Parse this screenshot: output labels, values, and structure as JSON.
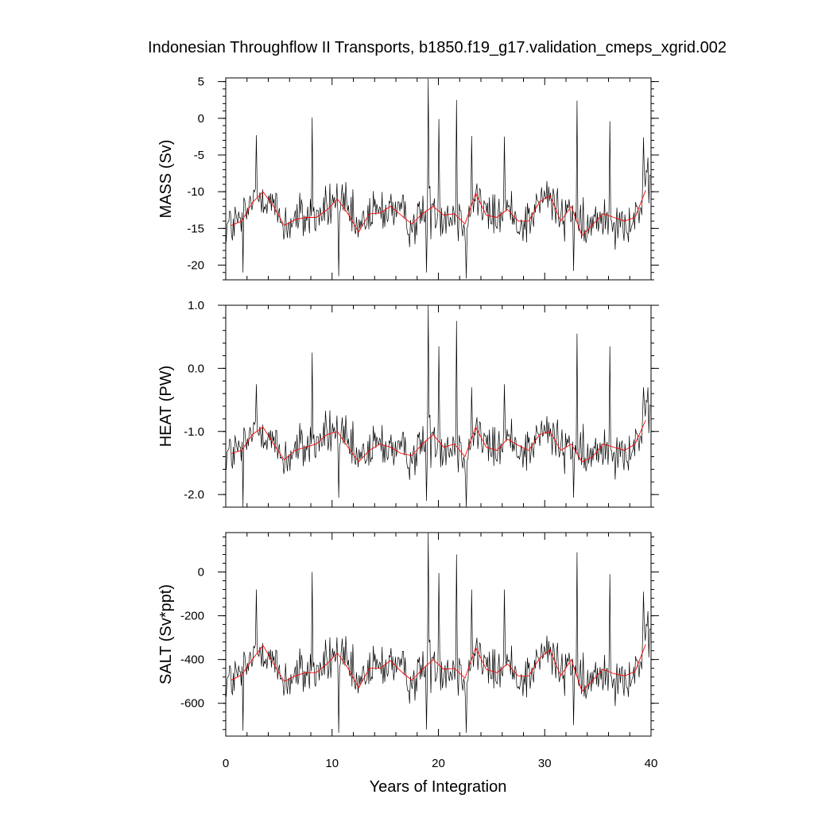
{
  "title": "Indonesian Throughflow II Transports, b1850.f19_g17.validation_cmeps_xgrid.002",
  "xlabel": "Years of Integration",
  "x_ticks": [
    "0",
    "10",
    "20",
    "30",
    "40"
  ],
  "colors": {
    "monthly": "#000000",
    "annual_mean": "#ff0000"
  },
  "chart_data": [
    {
      "type": "line",
      "ylabel": "MASS (Sv)",
      "xlim": [
        0,
        40
      ],
      "ylim": [
        -22,
        5.5
      ],
      "y_ticks": [
        5,
        0,
        -5,
        -10,
        -15,
        -20
      ],
      "y_tick_labels": [
        "5",
        "0",
        "-5",
        "-10",
        "-15",
        "-20"
      ],
      "annual_x": [
        0.5,
        1.5,
        2.5,
        3.5,
        4.5,
        5.5,
        6.5,
        7.5,
        8.5,
        9.5,
        10.5,
        11.5,
        12.5,
        13.5,
        14.5,
        15.5,
        16.5,
        17.5,
        18.5,
        19.5,
        20.5,
        21.5,
        22.5,
        23.5,
        24.5,
        25.5,
        26.5,
        27.5,
        28.5,
        29.5,
        30.5,
        31.5,
        32.5,
        33.5,
        34.5,
        35.5,
        36.5,
        37.5,
        38.5,
        39.5
      ],
      "annual_mean": [
        -14.6,
        -14.0,
        -11.5,
        -10.0,
        -12.0,
        -14.6,
        -13.8,
        -13.5,
        -13.5,
        -12.5,
        -11.0,
        -13.0,
        -15.5,
        -13.0,
        -12.9,
        -12.0,
        -13.2,
        -14.4,
        -13.0,
        -12.0,
        -13.2,
        -13.0,
        -14.4,
        -10.2,
        -13.2,
        -13.5,
        -12.4,
        -14.0,
        -14.0,
        -11.4,
        -10.5,
        -14.0,
        -12.0,
        -16.0,
        -14.5,
        -13.0,
        -13.5,
        -14.0,
        -13.5,
        -9.8
      ],
      "monthly_peaks": [
        [
          2.9,
          -2.3
        ],
        [
          8.1,
          0.1
        ],
        [
          19.0,
          5.4
        ],
        [
          20.0,
          -0.1
        ],
        [
          21.7,
          2.5
        ],
        [
          23.1,
          -2.4
        ],
        [
          26.2,
          -2.5
        ],
        [
          33.0,
          2.4
        ],
        [
          36.1,
          -0.4
        ],
        [
          39.3,
          -2.6
        ]
      ],
      "monthly_troughs": [
        [
          1.6,
          -21.0
        ],
        [
          10.6,
          -21.5
        ],
        [
          18.9,
          -21.0
        ],
        [
          22.6,
          -21.8
        ],
        [
          32.7,
          -20.8
        ]
      ]
    },
    {
      "type": "line",
      "ylabel": "HEAT (PW)",
      "xlim": [
        0,
        40
      ],
      "ylim": [
        -2.2,
        1.0
      ],
      "y_ticks": [
        1.0,
        0.0,
        -1.0,
        -2.0
      ],
      "y_tick_labels": [
        "1.0",
        "0.0",
        "-1.0",
        "-2.0"
      ],
      "annual_x": [
        0.5,
        1.5,
        2.5,
        3.5,
        4.5,
        5.5,
        6.5,
        7.5,
        8.5,
        9.5,
        10.5,
        11.5,
        12.5,
        13.5,
        14.5,
        15.5,
        16.5,
        17.5,
        18.5,
        19.5,
        20.5,
        21.5,
        22.5,
        23.5,
        24.5,
        25.5,
        26.5,
        27.5,
        28.5,
        29.5,
        30.5,
        31.5,
        32.5,
        33.5,
        34.5,
        35.5,
        36.5,
        37.5,
        38.5,
        39.5
      ],
      "annual_mean": [
        -1.35,
        -1.3,
        -1.05,
        -0.93,
        -1.2,
        -1.45,
        -1.3,
        -1.25,
        -1.2,
        -1.05,
        -1.0,
        -1.25,
        -1.48,
        -1.3,
        -1.2,
        -1.25,
        -1.35,
        -1.38,
        -1.2,
        -1.05,
        -1.25,
        -1.2,
        -1.4,
        -0.93,
        -1.25,
        -1.3,
        -1.12,
        -1.22,
        -1.3,
        -1.05,
        -1.0,
        -1.3,
        -1.2,
        -1.48,
        -1.4,
        -1.2,
        -1.25,
        -1.3,
        -1.2,
        -0.82
      ],
      "monthly_peaks": [
        [
          2.9,
          -0.25
        ],
        [
          8.1,
          0.25
        ],
        [
          19.0,
          1.0
        ],
        [
          20.0,
          0.35
        ],
        [
          21.7,
          0.75
        ],
        [
          23.1,
          -0.3
        ],
        [
          26.2,
          -0.25
        ],
        [
          33.0,
          0.55
        ],
        [
          36.1,
          0.35
        ],
        [
          39.3,
          -0.3
        ]
      ],
      "monthly_troughs": [
        [
          1.6,
          -2.2
        ],
        [
          10.6,
          -2.05
        ],
        [
          18.9,
          -2.1
        ],
        [
          22.6,
          -2.2
        ],
        [
          32.7,
          -2.05
        ]
      ]
    },
    {
      "type": "line",
      "ylabel": "SALT (Sv*ppt)",
      "xlim": [
        0,
        40
      ],
      "ylim": [
        -750,
        180
      ],
      "y_ticks": [
        0,
        -200,
        -400,
        -600
      ],
      "y_tick_labels": [
        "0",
        "-200",
        "-400",
        "-600"
      ],
      "annual_x": [
        0.5,
        1.5,
        2.5,
        3.5,
        4.5,
        5.5,
        6.5,
        7.5,
        8.5,
        9.5,
        10.5,
        11.5,
        12.5,
        13.5,
        14.5,
        15.5,
        16.5,
        17.5,
        18.5,
        19.5,
        20.5,
        21.5,
        22.5,
        23.5,
        24.5,
        25.5,
        26.5,
        27.5,
        28.5,
        29.5,
        30.5,
        31.5,
        32.5,
        33.5,
        34.5,
        35.5,
        36.5,
        37.5,
        38.5,
        39.5
      ],
      "annual_mean": [
        -495,
        -470,
        -400,
        -335,
        -420,
        -500,
        -475,
        -460,
        -460,
        -420,
        -370,
        -440,
        -530,
        -440,
        -440,
        -405,
        -455,
        -495,
        -445,
        -400,
        -445,
        -440,
        -485,
        -345,
        -445,
        -460,
        -420,
        -475,
        -475,
        -395,
        -355,
        -475,
        -400,
        -545,
        -495,
        -445,
        -465,
        -475,
        -455,
        -330
      ],
      "monthly_peaks": [
        [
          2.9,
          -80
        ],
        [
          8.1,
          0
        ],
        [
          19.0,
          180
        ],
        [
          20.0,
          -5
        ],
        [
          21.7,
          80
        ],
        [
          23.1,
          -80
        ],
        [
          26.2,
          -80
        ],
        [
          33.0,
          90
        ],
        [
          36.1,
          -10
        ],
        [
          39.3,
          -90
        ]
      ],
      "monthly_troughs": [
        [
          1.6,
          -725
        ],
        [
          10.6,
          -735
        ],
        [
          18.9,
          -720
        ],
        [
          22.6,
          -735
        ],
        [
          32.7,
          -700
        ]
      ]
    }
  ]
}
